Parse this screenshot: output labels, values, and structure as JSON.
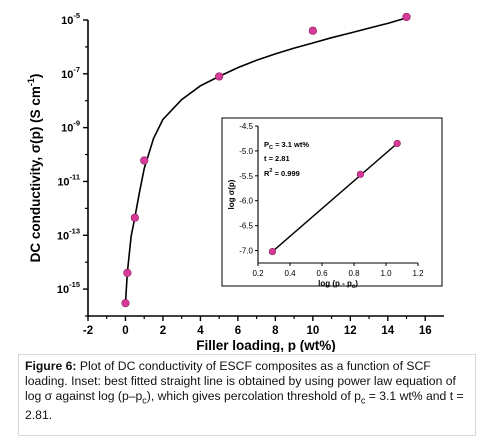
{
  "chart_data": [
    {
      "type": "scatter",
      "title": "",
      "xlabel": "Filler loading, p (wt%)",
      "ylabel_main": "DC conductivity, σ(p) (S cm",
      "ylabel_sup": "-1",
      "ylabel_close": ")",
      "xlim": [
        -2,
        17
      ],
      "xticks": [
        -2,
        0,
        2,
        4,
        6,
        8,
        10,
        12,
        14,
        16
      ],
      "xtick_labels": [
        "-2",
        "0",
        "2",
        "4",
        "6",
        "8",
        "10",
        "12",
        "14",
        "16"
      ],
      "yscale": "log",
      "ylim": [
        1e-16,
        1e-05
      ],
      "yticks": [
        1e-15,
        1e-13,
        1e-11,
        1e-09,
        1e-07,
        1e-05
      ],
      "ytick_labels": [
        {
          "base": "10",
          "exp": "-15"
        },
        {
          "base": "10",
          "exp": "-13"
        },
        {
          "base": "10",
          "exp": "-11"
        },
        {
          "base": "10",
          "exp": "-9"
        },
        {
          "base": "10",
          "exp": "-7"
        },
        {
          "base": "10",
          "exp": "-5"
        }
      ],
      "series": [
        {
          "x": [
            0,
            0.1,
            0.5,
            1,
            5,
            10,
            15
          ],
          "y": [
            3e-16,
            4e-15,
            4.5e-13,
            6e-11,
            8e-08,
            4e-06,
            1.3e-05
          ],
          "marker": "circle",
          "color": "#d83a9a"
        }
      ],
      "fit_curve": {
        "x": [
          0,
          0.1,
          0.3,
          0.5,
          0.75,
          1,
          1.5,
          2,
          3,
          4,
          5,
          6,
          7,
          8,
          9,
          10,
          11,
          12,
          13,
          14,
          15
        ],
        "y": [
          3e-16,
          4e-15,
          9e-14,
          4.5e-13,
          4e-12,
          3e-11,
          4e-10,
          2e-09,
          1.1e-08,
          3.6e-08,
          8e-08,
          1.7e-07,
          3.2e-07,
          5.5e-07,
          9e-07,
          1.4e-06,
          2.2e-06,
          3.3e-06,
          5e-06,
          7.5e-06,
          1.2e-05
        ],
        "color": "#000000"
      },
      "grid": false
    },
    {
      "type": "scatter",
      "title": "",
      "xlabel": "log (p - p",
      "xlabel_sub": "c",
      "xlabel_close": ")",
      "ylabel": "log σ(p)",
      "xlim": [
        0.2,
        1.2
      ],
      "xticks": [
        0.2,
        0.4,
        0.6,
        0.8,
        1.0,
        1.2
      ],
      "xtick_labels": [
        "0.2",
        "0.4",
        "0.6",
        "0.8",
        "1.0",
        "1.2"
      ],
      "ylim": [
        -7.25,
        -4.5
      ],
      "yticks": [
        -7.0,
        -6.5,
        -6.0,
        -5.5,
        -5.0,
        -4.5
      ],
      "ytick_labels": [
        "-7.0",
        "-6.5",
        "-6.0",
        "-5.5",
        "-5.0",
        "-4.5"
      ],
      "series": [
        {
          "x": [
            0.29,
            0.84,
            1.07
          ],
          "y": [
            -7.02,
            -5.47,
            -4.85
          ],
          "marker": "circle",
          "color": "#d83a9a"
        }
      ],
      "fit_line": {
        "x": [
          0.29,
          1.07
        ],
        "y": [
          -7.02,
          -4.85
        ],
        "color": "#000000"
      },
      "annotations": {
        "pc_prefix": "P",
        "pc_sub": "C",
        "pc_value": " = 3.1 wt%",
        "t": "t = 2.81",
        "r2_prefix": "R",
        "r2_sup": "2",
        "r2_value": " = 0.999"
      },
      "grid": false
    }
  ],
  "caption": {
    "label": "Figure 6:",
    "text1": " Plot of DC conductivity of ESCF composites as a function of SCF loading. Inset: best fitted straight line is obtained by using power law equation of log σ against log (p–p",
    "sub1": "c",
    "text2": "), which gives percolation threshold of p",
    "sub2": "c",
    "text3": " = 3.1 wt% and t = 2.81."
  }
}
